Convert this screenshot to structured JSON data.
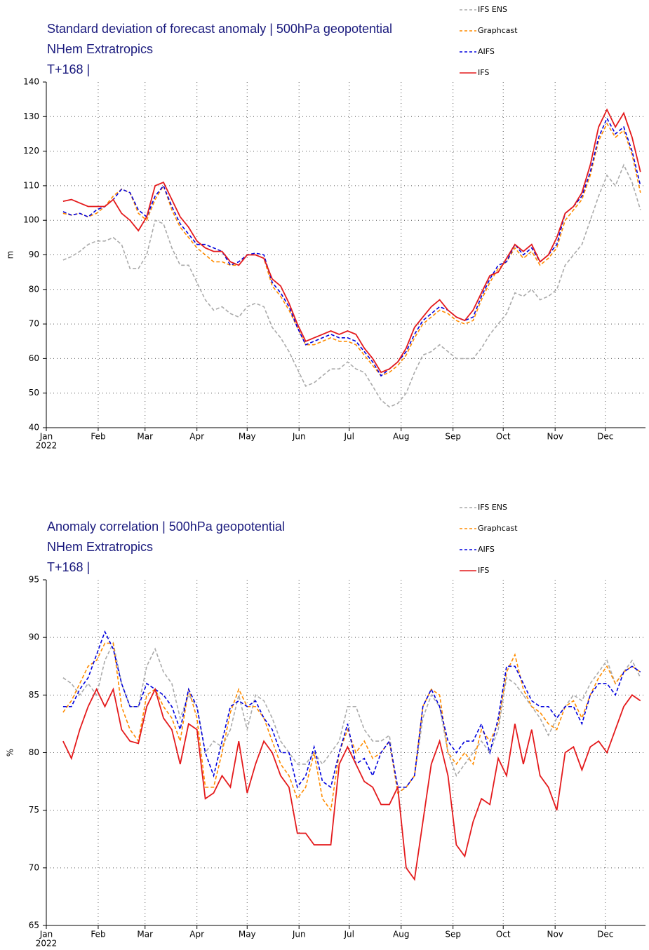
{
  "chart_data": [
    {
      "type": "line",
      "title": [
        "Standard deviation of forecast anomaly | 500hPa geopotential",
        "NHem Extratropics",
        "T+168 |"
      ],
      "ylabel": "m",
      "year": "2022",
      "grid": true,
      "legend": "upper right",
      "xlim": [
        0,
        358
      ],
      "ylim": [
        40,
        140
      ],
      "xticks": [
        {
          "value": 0,
          "label": "Jan"
        },
        {
          "value": 31,
          "label": "Feb"
        },
        {
          "value": 59,
          "label": "Mar"
        },
        {
          "value": 90,
          "label": "Apr"
        },
        {
          "value": 120,
          "label": "May"
        },
        {
          "value": 151,
          "label": "Jun"
        },
        {
          "value": 181,
          "label": "Jul"
        },
        {
          "value": 212,
          "label": "Aug"
        },
        {
          "value": 243,
          "label": "Sep"
        },
        {
          "value": 273,
          "label": "Oct"
        },
        {
          "value": 304,
          "label": "Nov"
        },
        {
          "value": 334,
          "label": "Dec"
        }
      ],
      "yticks": [
        40,
        50,
        60,
        70,
        80,
        90,
        100,
        110,
        120,
        130,
        140
      ],
      "x": [
        10,
        15,
        20,
        25,
        30,
        35,
        40,
        45,
        50,
        55,
        60,
        65,
        70,
        75,
        80,
        85,
        90,
        95,
        100,
        105,
        110,
        115,
        120,
        125,
        130,
        135,
        140,
        145,
        150,
        155,
        160,
        165,
        170,
        175,
        180,
        185,
        190,
        195,
        200,
        205,
        210,
        215,
        220,
        225,
        230,
        235,
        240,
        245,
        250,
        255,
        260,
        265,
        270,
        275,
        280,
        285,
        290,
        295,
        300,
        305,
        310,
        315,
        320,
        325,
        330,
        335,
        340,
        345,
        350,
        355
      ],
      "series": [
        {
          "name": "IFS ENS",
          "color": "#aaaaaa",
          "linestyle": "dashed",
          "values": [
            88.5,
            89.5,
            91,
            93,
            94,
            94,
            95,
            93,
            86,
            86,
            90,
            100,
            99,
            92,
            87,
            87,
            82,
            77,
            74,
            75,
            73,
            72,
            75,
            76,
            75,
            69,
            66,
            62,
            57,
            52,
            53,
            55,
            57,
            57,
            59,
            57,
            56,
            52,
            48,
            46,
            47,
            50,
            56,
            61,
            62,
            64,
            62,
            60,
            60,
            60,
            63,
            67,
            70,
            73,
            79,
            78,
            80,
            77,
            78,
            80,
            87,
            90,
            93,
            100,
            107,
            113,
            110,
            116,
            111,
            103
          ]
        },
        {
          "name": "Graphcast",
          "color": "#ff8c00",
          "linestyle": "dashed",
          "values": [
            102,
            101.5,
            102,
            101,
            102,
            104,
            107,
            109,
            108,
            102,
            100,
            106,
            110,
            103,
            98,
            95,
            92,
            90,
            88,
            88,
            87,
            87,
            90,
            90,
            89,
            81,
            78,
            74,
            69,
            64,
            64,
            65,
            66,
            65,
            65,
            64,
            61,
            58,
            55,
            56,
            58,
            61,
            66,
            70,
            72,
            74,
            73,
            71,
            70,
            71,
            77,
            82,
            86,
            88,
            92,
            89,
            91,
            87,
            89,
            92,
            100,
            103,
            106,
            113,
            123,
            128,
            124,
            126,
            119,
            108
          ]
        },
        {
          "name": "AIFS",
          "color": "#0000dd",
          "linestyle": "dashed",
          "values": [
            102.5,
            101.5,
            102,
            101,
            103,
            104,
            106,
            109,
            108,
            103,
            101,
            107,
            110,
            104,
            99,
            96,
            93,
            93,
            92,
            91,
            87,
            88,
            90,
            90.5,
            90,
            82,
            79,
            75,
            69,
            64,
            65,
            66,
            67,
            66,
            66,
            65,
            62,
            59,
            55,
            57,
            59,
            62,
            67,
            71,
            73,
            75,
            74,
            72,
            71,
            72,
            78,
            83,
            87,
            88,
            93,
            90,
            92,
            88,
            90,
            93,
            102,
            104,
            107,
            114,
            124,
            129.5,
            125,
            127,
            120,
            110
          ]
        },
        {
          "name": "IFS",
          "color": "#e41a1c",
          "linestyle": "solid",
          "values": [
            105.5,
            106,
            105,
            104,
            104,
            104,
            106,
            102,
            100,
            97,
            101,
            110,
            111,
            106,
            101,
            98,
            94,
            92,
            91,
            91,
            88,
            87,
            90,
            90,
            89,
            83,
            81,
            76,
            70,
            65,
            66,
            67,
            68,
            67,
            68,
            67,
            63,
            60,
            56,
            57,
            59,
            63,
            69,
            72,
            75,
            77,
            74,
            72,
            71,
            74,
            79,
            84,
            85,
            89,
            93,
            91,
            93,
            88,
            90,
            95,
            102,
            104,
            108,
            116,
            127,
            132,
            127,
            131,
            124,
            114
          ]
        }
      ]
    },
    {
      "type": "line",
      "title": [
        "Anomaly correlation | 500hPa geopotential",
        "NHem Extratropics",
        "T+168 |"
      ],
      "ylabel": "%",
      "year": "2022",
      "grid": true,
      "legend": "upper right",
      "xlim": [
        0,
        358
      ],
      "ylim": [
        65,
        95
      ],
      "xticks": [
        {
          "value": 0,
          "label": "Jan"
        },
        {
          "value": 31,
          "label": "Feb"
        },
        {
          "value": 59,
          "label": "Mar"
        },
        {
          "value": 90,
          "label": "Apr"
        },
        {
          "value": 120,
          "label": "May"
        },
        {
          "value": 151,
          "label": "Jun"
        },
        {
          "value": 181,
          "label": "Jul"
        },
        {
          "value": 212,
          "label": "Aug"
        },
        {
          "value": 243,
          "label": "Sep"
        },
        {
          "value": 273,
          "label": "Oct"
        },
        {
          "value": 304,
          "label": "Nov"
        },
        {
          "value": 334,
          "label": "Dec"
        }
      ],
      "yticks": [
        65,
        70,
        75,
        80,
        85,
        90,
        95
      ],
      "x": [
        10,
        15,
        20,
        25,
        30,
        35,
        40,
        45,
        50,
        55,
        60,
        65,
        70,
        75,
        80,
        85,
        90,
        95,
        100,
        105,
        110,
        115,
        120,
        125,
        130,
        135,
        140,
        145,
        150,
        155,
        160,
        165,
        170,
        175,
        180,
        185,
        190,
        195,
        200,
        205,
        210,
        215,
        220,
        225,
        230,
        235,
        240,
        245,
        250,
        255,
        260,
        265,
        270,
        275,
        280,
        285,
        290,
        295,
        300,
        305,
        310,
        315,
        320,
        325,
        330,
        335,
        340,
        345,
        350,
        355
      ],
      "series": [
        {
          "name": "IFS ENS",
          "color": "#aaaaaa",
          "linestyle": "dashed",
          "values": [
            86.5,
            86,
            85,
            86,
            85,
            88,
            89.5,
            86,
            84,
            84,
            87.5,
            89,
            87,
            86,
            83,
            85,
            84,
            80,
            81,
            80.5,
            82,
            85,
            82,
            85,
            84.5,
            83,
            81,
            80,
            79,
            79,
            80,
            79,
            80,
            81,
            84,
            84,
            82,
            81,
            81,
            81.5,
            76.5,
            77,
            78,
            83,
            85,
            84,
            80,
            78,
            79,
            80,
            81,
            80,
            82,
            86.5,
            86,
            85,
            84,
            83,
            81.5,
            83,
            84,
            85,
            84.5,
            86,
            87,
            88,
            86,
            87,
            88,
            86.5
          ]
        },
        {
          "name": "Graphcast",
          "color": "#ff8c00",
          "linestyle": "dashed",
          "values": [
            83.5,
            84.5,
            86,
            87.5,
            88,
            89.5,
            89.5,
            84,
            82,
            81,
            85,
            85.5,
            84,
            83,
            81,
            85.5,
            83,
            77,
            77,
            80,
            83.5,
            85.5,
            84,
            84,
            83,
            81,
            79,
            78,
            76,
            77,
            80,
            76,
            75,
            80,
            82,
            80,
            81,
            79.5,
            80,
            81,
            76.5,
            77,
            78,
            84,
            85.5,
            85,
            80,
            79,
            80,
            79,
            82,
            81,
            82.5,
            87,
            88.5,
            85.5,
            84,
            83.5,
            82.5,
            82,
            84,
            84.5,
            83,
            85,
            86.5,
            87.5,
            86,
            87,
            87.5,
            87
          ]
        },
        {
          "name": "AIFS",
          "color": "#0000dd",
          "linestyle": "dashed",
          "values": [
            84,
            84,
            85.5,
            86.5,
            88.5,
            90.5,
            89,
            86,
            84,
            84,
            86,
            85.5,
            85,
            84,
            82,
            85.5,
            84,
            80,
            78,
            81,
            84,
            84.5,
            84,
            84.5,
            83,
            82,
            80,
            80,
            77,
            78,
            80.5,
            77.5,
            77,
            80,
            82.5,
            79,
            79.5,
            78,
            80,
            81,
            77,
            77,
            78,
            84,
            85.5,
            84,
            81,
            80,
            81,
            81,
            82.5,
            80,
            83,
            87.5,
            87.5,
            86,
            84.5,
            84,
            84,
            83,
            84,
            84,
            82.5,
            85,
            86,
            86,
            85,
            87,
            87.5,
            87
          ]
        },
        {
          "name": "IFS",
          "color": "#e41a1c",
          "linestyle": "solid",
          "values": [
            81,
            79.5,
            82,
            84,
            85.5,
            84,
            85.5,
            82,
            81,
            80.8,
            84,
            85.5,
            83,
            82,
            79,
            82.5,
            82,
            76,
            76.5,
            78,
            77,
            81,
            76.5,
            79,
            81,
            80,
            78,
            77,
            73,
            73,
            72,
            72,
            72,
            79,
            80.5,
            79,
            77.5,
            77,
            75.5,
            75.5,
            77,
            70,
            69,
            74,
            79,
            81,
            78,
            72,
            71,
            74,
            76,
            75.5,
            79.5,
            78,
            82.5,
            79,
            82,
            78,
            77,
            75,
            80,
            80.5,
            78.5,
            80.5,
            81,
            80,
            82,
            84,
            85,
            84.5
          ]
        }
      ]
    }
  ]
}
